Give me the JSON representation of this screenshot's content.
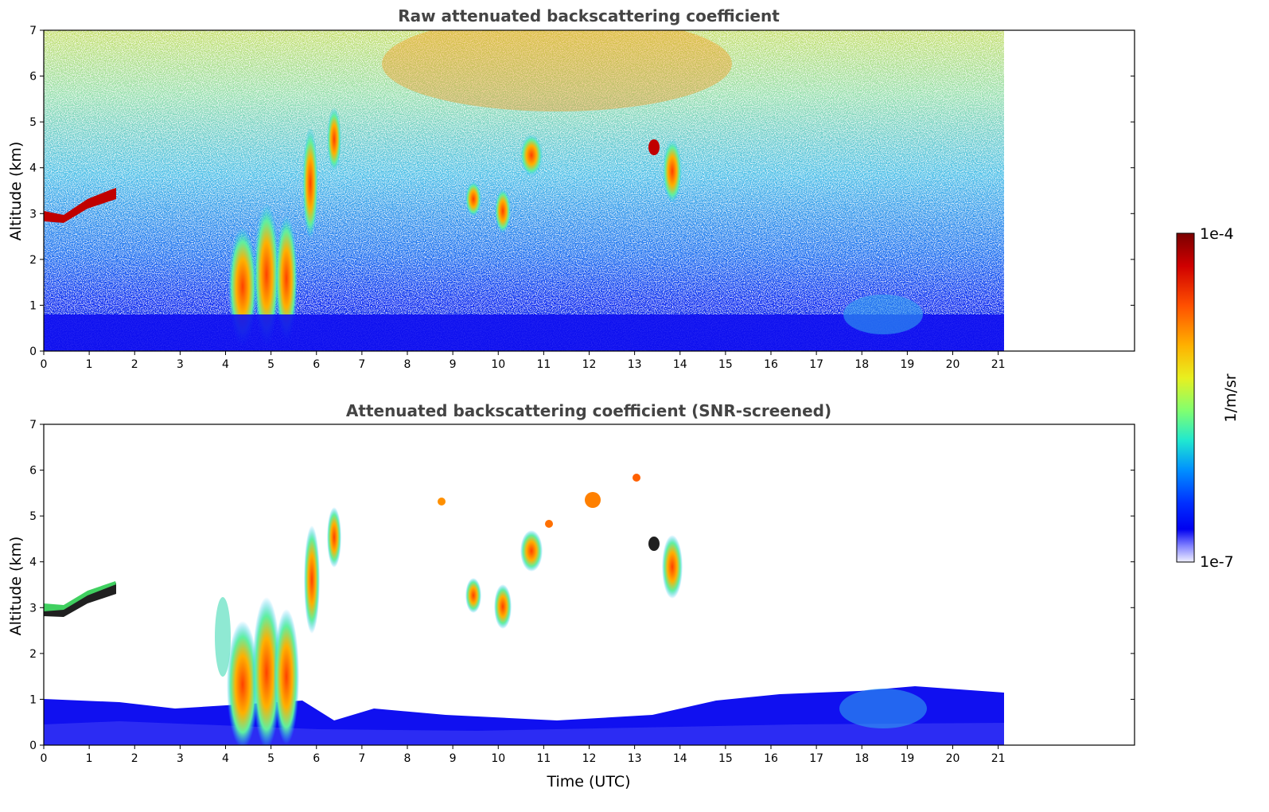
{
  "chart_data": [
    {
      "type": "heatmap",
      "title": "Raw attenuated backscattering coefficient",
      "xlabel": "",
      "ylabel": "Altitude (km)",
      "xlim": [
        0,
        24
      ],
      "ylim": [
        0,
        7
      ],
      "x_ticks": [
        "0",
        "1",
        "2",
        "3",
        "4",
        "5",
        "6",
        "7",
        "8",
        "9",
        "10",
        "11",
        "12",
        "13",
        "14",
        "15",
        "16",
        "17",
        "18",
        "19",
        "20",
        "21"
      ],
      "y_ticks": [
        "0",
        "1",
        "2",
        "3",
        "4",
        "5",
        "6",
        "7"
      ],
      "data_end_time_utc": 21.1,
      "features": [
        {
          "name": "elevated aerosol layer",
          "time": [
            0,
            1.6
          ],
          "altitude_km": [
            2.8,
            3.6
          ],
          "level": "high"
        },
        {
          "name": "convective cloud plumes",
          "time": [
            3.8,
            5.5
          ],
          "altitude_km": [
            0,
            3.5
          ],
          "level": "high"
        },
        {
          "name": "cloud streaks",
          "time": [
            5.5,
            6.8
          ],
          "altitude_km": [
            3,
            5
          ],
          "level": "high"
        },
        {
          "name": "mid-level clouds",
          "time": [
            9,
            11
          ],
          "altitude_km": [
            2.5,
            4.5
          ],
          "level": "high"
        },
        {
          "name": "mid-level clouds",
          "time": [
            13,
            14.5
          ],
          "altitude_km": [
            3,
            6
          ],
          "level": "high"
        },
        {
          "name": "boundary layer",
          "time": [
            0,
            21.1
          ],
          "altitude_km": [
            0,
            0.8
          ],
          "level": "low"
        },
        {
          "name": "background noise",
          "time": [
            0,
            21.1
          ],
          "altitude_km": [
            1,
            7
          ],
          "level": "noisy"
        }
      ]
    },
    {
      "type": "heatmap",
      "title": "Attenuated backscattering coefficient (SNR-screened)",
      "xlabel": "Time (UTC)",
      "ylabel": "Altitude (km)",
      "xlim": [
        0,
        24
      ],
      "ylim": [
        0,
        7
      ],
      "x_ticks": [
        "0",
        "1",
        "2",
        "3",
        "4",
        "5",
        "6",
        "7",
        "8",
        "9",
        "10",
        "11",
        "12",
        "13",
        "14",
        "15",
        "16",
        "17",
        "18",
        "19",
        "20",
        "21"
      ],
      "y_ticks": [
        "0",
        "1",
        "2",
        "3",
        "4",
        "5",
        "6",
        "7"
      ],
      "data_end_time_utc": 21.1,
      "features": [
        {
          "name": "elevated aerosol layer",
          "time": [
            0,
            1.6
          ],
          "altitude_km": [
            2.8,
            3.6
          ],
          "level": "high"
        },
        {
          "name": "convective cloud plumes",
          "time": [
            3.8,
            5.5
          ],
          "altitude_km": [
            0,
            3.5
          ],
          "level": "high"
        },
        {
          "name": "cloud streaks",
          "time": [
            5.5,
            6.8
          ],
          "altitude_km": [
            3,
            5
          ],
          "level": "high"
        },
        {
          "name": "mid-level clouds",
          "time": [
            9,
            11
          ],
          "altitude_km": [
            2.5,
            4.5
          ],
          "level": "high"
        },
        {
          "name": "mid-level clouds",
          "time": [
            13,
            14.5
          ],
          "altitude_km": [
            3,
            6
          ],
          "level": "high"
        },
        {
          "name": "boundary layer",
          "time": [
            0,
            21.1
          ],
          "altitude_km": [
            0,
            1.2
          ],
          "level": "low"
        }
      ]
    }
  ],
  "colorbar": {
    "label": "1/m/sr",
    "max_label": "1e-4",
    "min_label": "1e-7",
    "colors": [
      "#800000",
      "#c00000",
      "#ff2000",
      "#ff7000",
      "#ffb000",
      "#f0f020",
      "#90ff60",
      "#30ffc0",
      "#00d0ff",
      "#0080ff",
      "#0030ff",
      "#0000f0",
      "#8080ff",
      "#e8e8ff"
    ]
  }
}
